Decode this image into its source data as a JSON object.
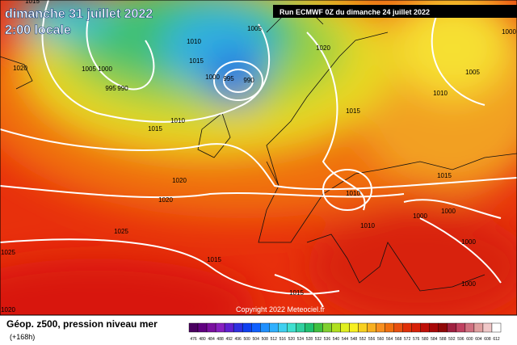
{
  "header": {
    "valid_date": "dimanche 31 juillet 2022",
    "local_time": "2:00 locale",
    "run": "Run ECMWF 0Z du dimanche 24 juillet 2022"
  },
  "isobar_labels": [
    "1015",
    "1005",
    "1010",
    "1015",
    "1005",
    "1000",
    "995",
    "990",
    "1000",
    "995",
    "990",
    "1020",
    "1005",
    "1010",
    "1015",
    "1015",
    "1010",
    "1020",
    "1020",
    "1025",
    "1015",
    "1010",
    "1010",
    "1000",
    "1000",
    "1000",
    "1015",
    "1015",
    "1000",
    "1020",
    "1025",
    "1020",
    "1000"
  ],
  "footer": {
    "copyright": "Copyright 2022 Meteociel.fr",
    "title": "Géop. z500, pression niveau mer",
    "lead": "(+168h)"
  },
  "legend": {
    "labels": [
      "476",
      "480",
      "484",
      "488",
      "492",
      "496",
      "500",
      "504",
      "508",
      "512",
      "516",
      "520",
      "524",
      "528",
      "532",
      "536",
      "540",
      "544",
      "548",
      "552",
      "556",
      "560",
      "564",
      "568",
      "572",
      "576",
      "580",
      "584",
      "588",
      "592",
      "596",
      "600",
      "604",
      "608",
      "612"
    ]
  }
}
